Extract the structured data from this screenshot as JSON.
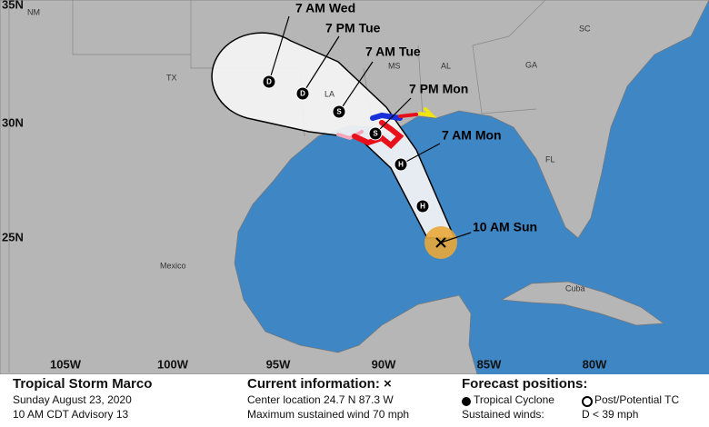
{
  "map": {
    "lat_labels": [
      "35N",
      "30N",
      "25N"
    ],
    "lon_labels": [
      "105W",
      "100W",
      "95W",
      "90W",
      "85W",
      "80W"
    ],
    "region_labels": [
      "NM",
      "TX",
      "LA",
      "MS",
      "AL",
      "GA",
      "SC",
      "FL",
      "Mexico",
      "Cuba"
    ],
    "forecast_labels": [
      "7 AM Wed",
      "7 PM Tue",
      "7 AM Tue",
      "7 PM Mon",
      "7 AM Mon",
      "10 AM Sun"
    ],
    "point_symbols": [
      "D",
      "D",
      "S",
      "S",
      "H",
      "H"
    ]
  },
  "info": {
    "storm": {
      "title": "Tropical Storm Marco",
      "date": "Sunday August 23, 2020",
      "advisory": "10 AM CDT Advisory 13"
    },
    "current": {
      "title": "Current information: ×",
      "location": "Center location 24.7 N 87.3 W",
      "wind": "Maximum sustained wind 70 mph"
    },
    "forecast": {
      "title": "Forecast positions:",
      "tc": "Tropical Cyclone",
      "ptc": "Post/Potential TC",
      "winds_label": "Sustained winds:",
      "winds_d": "D < 39 mph"
    }
  }
}
